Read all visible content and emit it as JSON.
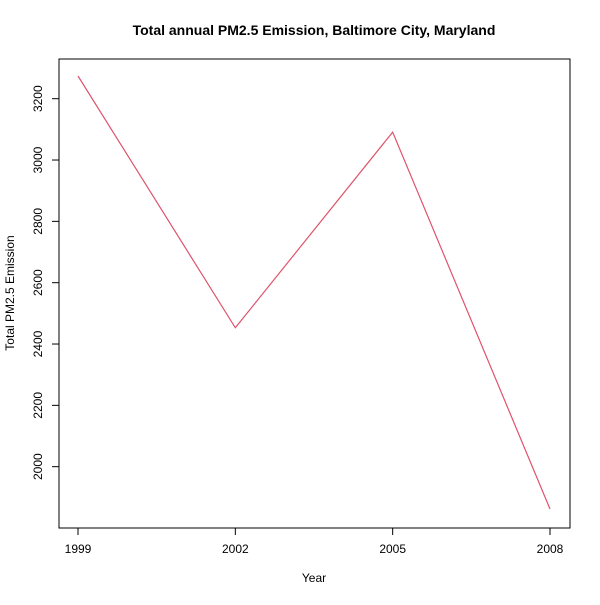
{
  "chart_data": {
    "type": "line",
    "title": "Total annual PM2.5 Emission, Baltimore City, Maryland",
    "xlabel": "Year",
    "ylabel": "Total PM2.5 Emission",
    "x": [
      1999,
      2002,
      2005,
      2008
    ],
    "series": [
      {
        "values": [
          3274,
          2453,
          3091,
          1862
        ],
        "color": "#DF536B"
      }
    ],
    "xlim": [
      1999,
      2008
    ],
    "ylim": [
      1862,
      3274
    ],
    "xticks": [
      "1999",
      "2002",
      "2005",
      "2008"
    ],
    "yticks": [
      "2000",
      "2200",
      "2400",
      "2600",
      "2800",
      "3000",
      "3200"
    ],
    "grid": false,
    "legend": "none"
  }
}
